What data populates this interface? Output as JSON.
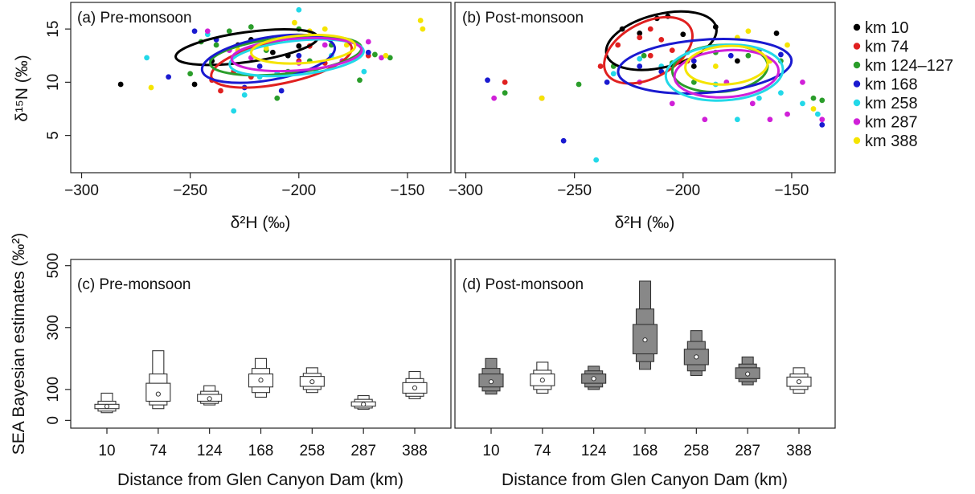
{
  "figure": {
    "top_ylabel": "δ¹⁵N (‰)",
    "bottom_ylabel": "SEA Bayesian estimates (‰²)"
  },
  "chart_data": [
    {
      "id": "a",
      "type": "scatter",
      "panel_label": "(a) Pre-monsoon",
      "xlabel": "δ²H (‰)",
      "ylabel": "δ¹⁵N (‰)",
      "xlim": [
        -305,
        -130
      ],
      "ylim": [
        1.5,
        17.5
      ],
      "xticks": [
        -300,
        -250,
        -200,
        -150
      ],
      "yticks": [
        5,
        10,
        15
      ],
      "series": [
        {
          "name": "km 10",
          "color": "#000000",
          "points": [
            [
              -282,
              9.8
            ],
            [
              -248,
              9.8
            ],
            [
              -240,
              12.0
            ],
            [
              -228,
              13.5
            ],
            [
              -222,
              14.0
            ],
            [
              -212,
              12.8
            ],
            [
              -205,
              12.5
            ],
            [
              -200,
              13.4
            ]
          ],
          "ellipse": {
            "cx": -224,
            "cy": 13.3,
            "rx": 33,
            "ry": 1.4,
            "angle": 8
          }
        },
        {
          "name": "km 74",
          "color": "#e02020",
          "points": [
            [
              -240,
              10.2
            ],
            [
              -236,
              9.2
            ],
            [
              -230,
              11.0
            ],
            [
              -222,
              10.5
            ],
            [
              -210,
              10.8
            ],
            [
              -200,
              12.0
            ],
            [
              -195,
              13.4
            ],
            [
              -188,
              11.8
            ],
            [
              -168,
              12.5
            ]
          ],
          "ellipse": {
            "cx": -208,
            "cy": 11.9,
            "rx": 33,
            "ry": 2.0,
            "angle": 12
          }
        },
        {
          "name": "km 124–127",
          "color": "#2a9d2a",
          "points": [
            [
              -250,
              10.8
            ],
            [
              -245,
              13.8
            ],
            [
              -238,
              13.5
            ],
            [
              -232,
              14.8
            ],
            [
              -222,
              15.2
            ],
            [
              -215,
              13.0
            ],
            [
              -210,
              8.5
            ],
            [
              -205,
              11.0
            ],
            [
              -200,
              15.0
            ],
            [
              -195,
              12.0
            ],
            [
              -185,
              13.5
            ],
            [
              -172,
              10.2
            ],
            [
              -165,
              12.6
            ],
            [
              -158,
              12.3
            ]
          ],
          "ellipse": {
            "cx": -206,
            "cy": 12.5,
            "rx": 35,
            "ry": 1.7,
            "angle": 6
          }
        },
        {
          "name": "km 168",
          "color": "#1a1ad0",
          "points": [
            [
              -260,
              10.5
            ],
            [
              -248,
              14.8
            ],
            [
              -238,
              14.0
            ],
            [
              -225,
              9.5
            ],
            [
              -218,
              11.5
            ],
            [
              -208,
              9.2
            ],
            [
              -200,
              12.5
            ],
            [
              -180,
              12.0
            ],
            [
              -168,
              12.8
            ]
          ],
          "ellipse": {
            "cx": -214,
            "cy": 12.2,
            "rx": 31,
            "ry": 2.0,
            "angle": 10
          }
        },
        {
          "name": "km 258",
          "color": "#22d8e8",
          "points": [
            [
              -270,
              12.3
            ],
            [
              -242,
              14.5
            ],
            [
              -230,
              7.3
            ],
            [
              -225,
              8.8
            ],
            [
              -218,
              10.5
            ],
            [
              -210,
              10.8
            ],
            [
              -200,
              16.8
            ],
            [
              -192,
              11.0
            ],
            [
              -185,
              12.5
            ],
            [
              -170,
              11.0
            ]
          ],
          "ellipse": {
            "cx": -201,
            "cy": 12.3,
            "rx": 31,
            "ry": 1.6,
            "angle": 6
          }
        },
        {
          "name": "km 287",
          "color": "#d020d8",
          "points": [
            [
              -242,
              14.8
            ],
            [
              -232,
              13.0
            ],
            [
              -222,
              12.3
            ],
            [
              -212,
              13.8
            ],
            [
              -200,
              11.8
            ],
            [
              -188,
              13.5
            ],
            [
              -180,
              12.0
            ],
            [
              -168,
              13.8
            ],
            [
              -162,
              12.3
            ]
          ],
          "ellipse": {
            "cx": -201,
            "cy": 12.6,
            "rx": 30,
            "ry": 1.5,
            "angle": 4
          }
        },
        {
          "name": "km 388",
          "color": "#f5e400",
          "points": [
            [
              -268,
              9.5
            ],
            [
              -228,
              13.0
            ],
            [
              -215,
              13.2
            ],
            [
              -202,
              15.6
            ],
            [
              -195,
              14.8
            ],
            [
              -188,
              15.0
            ],
            [
              -178,
              13.5
            ],
            [
              -160,
              12.5
            ],
            [
              -144,
              15.8
            ],
            [
              -143,
              15.0
            ]
          ],
          "ellipse": {
            "cx": -198,
            "cy": 13.1,
            "rx": 24,
            "ry": 1.3,
            "angle": 4
          }
        }
      ]
    },
    {
      "id": "b",
      "type": "scatter",
      "panel_label": "(b) Post-monsoon",
      "xlabel": "δ²H (‰)",
      "xlim": [
        -305,
        -130
      ],
      "ylim": [
        1.5,
        17.5
      ],
      "xticks": [
        -300,
        -250,
        -200,
        -150
      ],
      "series": [
        {
          "name": "km 10",
          "color": "#000000",
          "points": [
            [
              -228,
              15.0
            ],
            [
              -220,
              14.6
            ],
            [
              -212,
              16.0
            ],
            [
              -207,
              16.2
            ],
            [
              -200,
              14.5
            ],
            [
              -185,
              15.2
            ],
            [
              -175,
              12.0
            ],
            [
              -157,
              14.6
            ],
            [
              -195,
              11.5
            ]
          ],
          "ellipse": {
            "cx": -210,
            "cy": 13.9,
            "rx": 26,
            "ry": 2.5,
            "angle": 14
          }
        },
        {
          "name": "km 74",
          "color": "#e02020",
          "points": [
            [
              -282,
              10.0
            ],
            [
              -265,
              8.5
            ],
            [
              -238,
              11.5
            ],
            [
              -230,
              13.5
            ],
            [
              -220,
              14.2
            ],
            [
              -215,
              15.0
            ],
            [
              -210,
              14.0
            ],
            [
              -205,
              13.0
            ],
            [
              -198,
              12.0
            ],
            [
              -215,
              12.5
            ]
          ],
          "ellipse": {
            "cx": -216,
            "cy": 13.0,
            "rx": 22,
            "ry": 2.6,
            "angle": 28
          }
        },
        {
          "name": "km 124–127",
          "color": "#2a9d2a",
          "points": [
            [
              -282,
              9.0
            ],
            [
              -248,
              9.8
            ],
            [
              -232,
              11.5
            ],
            [
              -218,
              12.5
            ],
            [
              -205,
              11.8
            ],
            [
              -195,
              10.0
            ],
            [
              -185,
              12.8
            ],
            [
              -170,
              12.5
            ],
            [
              -155,
              12.0
            ],
            [
              -140,
              8.5
            ],
            [
              -136,
              8.3
            ]
          ],
          "ellipse": {
            "cx": -183,
            "cy": 11.3,
            "rx": 22,
            "ry": 2.2,
            "angle": 4
          }
        },
        {
          "name": "km 168",
          "color": "#1a1ad0",
          "points": [
            [
              -290,
              10.2
            ],
            [
              -255,
              4.5
            ],
            [
              -235,
              10.0
            ],
            [
              -220,
              11.5
            ],
            [
              -210,
              11.0
            ],
            [
              -195,
              12.0
            ],
            [
              -178,
              12.5
            ],
            [
              -165,
              13.0
            ],
            [
              -155,
              12.6
            ],
            [
              -136,
              6.0
            ]
          ],
          "ellipse": {
            "cx": -190,
            "cy": 11.5,
            "rx": 40,
            "ry": 2.5,
            "angle": 4
          }
        },
        {
          "name": "km 258",
          "color": "#22d8e8",
          "points": [
            [
              -240,
              2.7
            ],
            [
              -232,
              10.8
            ],
            [
              -220,
              12.2
            ],
            [
              -210,
              11.5
            ],
            [
              -198,
              12.8
            ],
            [
              -185,
              9.8
            ],
            [
              -175,
              6.5
            ],
            [
              -165,
              8.5
            ],
            [
              -155,
              9.0
            ],
            [
              -145,
              8.0
            ],
            [
              -138,
              7.0
            ]
          ],
          "ellipse": {
            "cx": -181,
            "cy": 10.9,
            "rx": 27,
            "ry": 2.6,
            "angle": 4
          }
        },
        {
          "name": "km 287",
          "color": "#d020d8",
          "points": [
            [
              -287,
              8.5
            ],
            [
              -220,
              10.0
            ],
            [
              -205,
              8.0
            ],
            [
              -190,
              6.5
            ],
            [
              -180,
              10.0
            ],
            [
              -168,
              8.0
            ],
            [
              -160,
              6.5
            ],
            [
              -152,
              7.0
            ],
            [
              -145,
              10.0
            ],
            [
              -136,
              6.5
            ]
          ],
          "ellipse": {
            "cx": -180,
            "cy": 10.8,
            "rx": 24,
            "ry": 2.2,
            "angle": 4
          }
        },
        {
          "name": "km 388",
          "color": "#f5e400",
          "points": [
            [
              -265,
              8.5
            ],
            [
              -200,
              12.0
            ],
            [
              -185,
              11.5
            ],
            [
              -175,
              14.2
            ],
            [
              -170,
              14.8
            ],
            [
              -160,
              12.0
            ],
            [
              -152,
              13.5
            ],
            [
              -140,
              7.5
            ]
          ],
          "ellipse": {
            "cx": -180,
            "cy": 11.6,
            "rx": 19,
            "ry": 1.8,
            "angle": 4
          }
        }
      ]
    },
    {
      "id": "c",
      "type": "box",
      "panel_label": "(c) Pre-monsoon",
      "xlabel": "Distance from Glen Canyon Dam (km)",
      "ylabel": "SEA Bayesian estimates (‰²)",
      "ylim": [
        -25,
        520
      ],
      "yticks": [
        0,
        100,
        300,
        500
      ],
      "categories": [
        "10",
        "74",
        "124",
        "168",
        "258",
        "287",
        "388"
      ],
      "fill": "#ffffff",
      "boxes": [
        {
          "mode": 45,
          "ci50": [
            38,
            52
          ],
          "ci75": [
            30,
            62
          ],
          "ci95": [
            25,
            88
          ]
        },
        {
          "mode": 85,
          "ci50": [
            62,
            120
          ],
          "ci75": [
            50,
            150
          ],
          "ci95": [
            38,
            225
          ]
        },
        {
          "mode": 70,
          "ci50": [
            62,
            84
          ],
          "ci75": [
            55,
            94
          ],
          "ci95": [
            50,
            112
          ]
        },
        {
          "mode": 130,
          "ci50": [
            108,
            150
          ],
          "ci75": [
            90,
            168
          ],
          "ci95": [
            75,
            200
          ]
        },
        {
          "mode": 125,
          "ci50": [
            110,
            142
          ],
          "ci75": [
            100,
            152
          ],
          "ci95": [
            90,
            170
          ]
        },
        {
          "mode": 52,
          "ci50": [
            46,
            60
          ],
          "ci75": [
            40,
            68
          ],
          "ci95": [
            36,
            80
          ]
        },
        {
          "mode": 105,
          "ci50": [
            88,
            122
          ],
          "ci75": [
            78,
            135
          ],
          "ci95": [
            70,
            158
          ]
        }
      ]
    },
    {
      "id": "d",
      "type": "box",
      "panel_label": "(d) Post-monsoon",
      "xlabel": "Distance from Glen Canyon Dam (km)",
      "ylim": [
        -25,
        520
      ],
      "categories": [
        "10",
        "74",
        "124",
        "168",
        "258",
        "287",
        "388"
      ],
      "fill_by_category": [
        "#888888",
        "#ffffff",
        "#888888",
        "#888888",
        "#888888",
        "#888888",
        "#ffffff"
      ],
      "boxes": [
        {
          "mode": 125,
          "ci50": [
            108,
            150
          ],
          "ci75": [
            95,
            168
          ],
          "ci95": [
            85,
            200
          ]
        },
        {
          "mode": 130,
          "ci50": [
            112,
            150
          ],
          "ci75": [
            100,
            162
          ],
          "ci95": [
            88,
            188
          ]
        },
        {
          "mode": 135,
          "ci50": [
            120,
            150
          ],
          "ci75": [
            108,
            160
          ],
          "ci95": [
            100,
            175
          ]
        },
        {
          "mode": 260,
          "ci50": [
            215,
            310
          ],
          "ci75": [
            190,
            360
          ],
          "ci95": [
            165,
            450
          ]
        },
        {
          "mode": 205,
          "ci50": [
            180,
            230
          ],
          "ci75": [
            160,
            255
          ],
          "ci95": [
            145,
            290
          ]
        },
        {
          "mode": 150,
          "ci50": [
            135,
            170
          ],
          "ci75": [
            125,
            182
          ],
          "ci95": [
            115,
            205
          ]
        },
        {
          "mode": 125,
          "ci50": [
            110,
            140
          ],
          "ci75": [
            100,
            150
          ],
          "ci95": [
            88,
            170
          ]
        }
      ]
    }
  ]
}
